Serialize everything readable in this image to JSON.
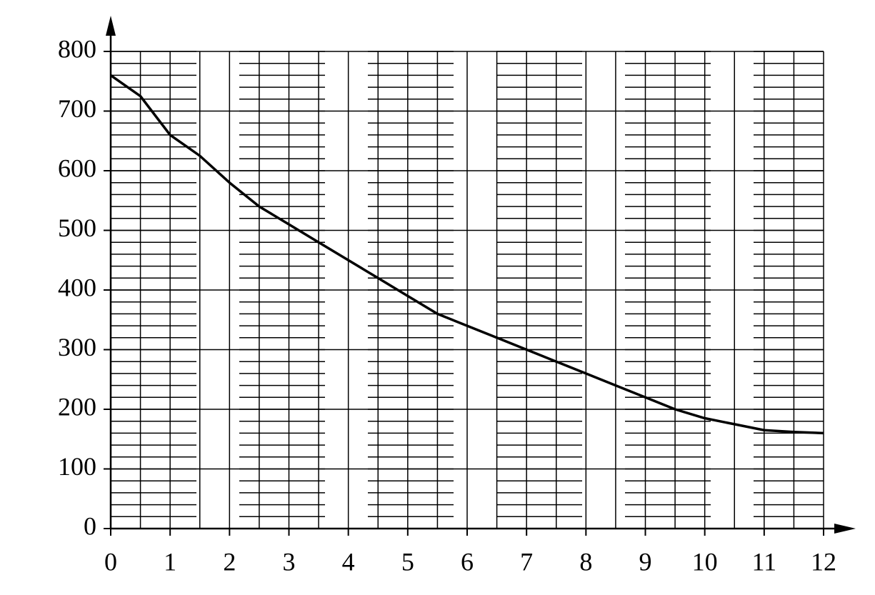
{
  "chart_data": {
    "type": "line",
    "x": [
      0,
      0.5,
      1,
      1.5,
      2,
      2.5,
      3,
      3.5,
      4,
      4.5,
      5,
      5.5,
      6,
      6.5,
      7,
      7.5,
      8,
      8.5,
      9,
      9.5,
      10,
      10.5,
      11,
      11.5,
      12
    ],
    "series": [
      {
        "color": "#000000",
        "values": [
          760,
          725,
          660,
          625,
          580,
          540,
          510,
          480,
          450,
          420,
          390,
          360,
          340,
          320,
          300,
          280,
          260,
          240,
          220,
          200,
          185,
          175,
          165,
          162,
          160
        ]
      }
    ],
    "xlim": [
      0,
      12
    ],
    "ylim": [
      0,
      800
    ],
    "xticks": [
      0,
      1,
      2,
      3,
      4,
      5,
      6,
      7,
      8,
      9,
      10,
      11,
      12
    ],
    "yticks": [
      0,
      100,
      200,
      300,
      400,
      500,
      600,
      700,
      800
    ],
    "grid": true
  }
}
